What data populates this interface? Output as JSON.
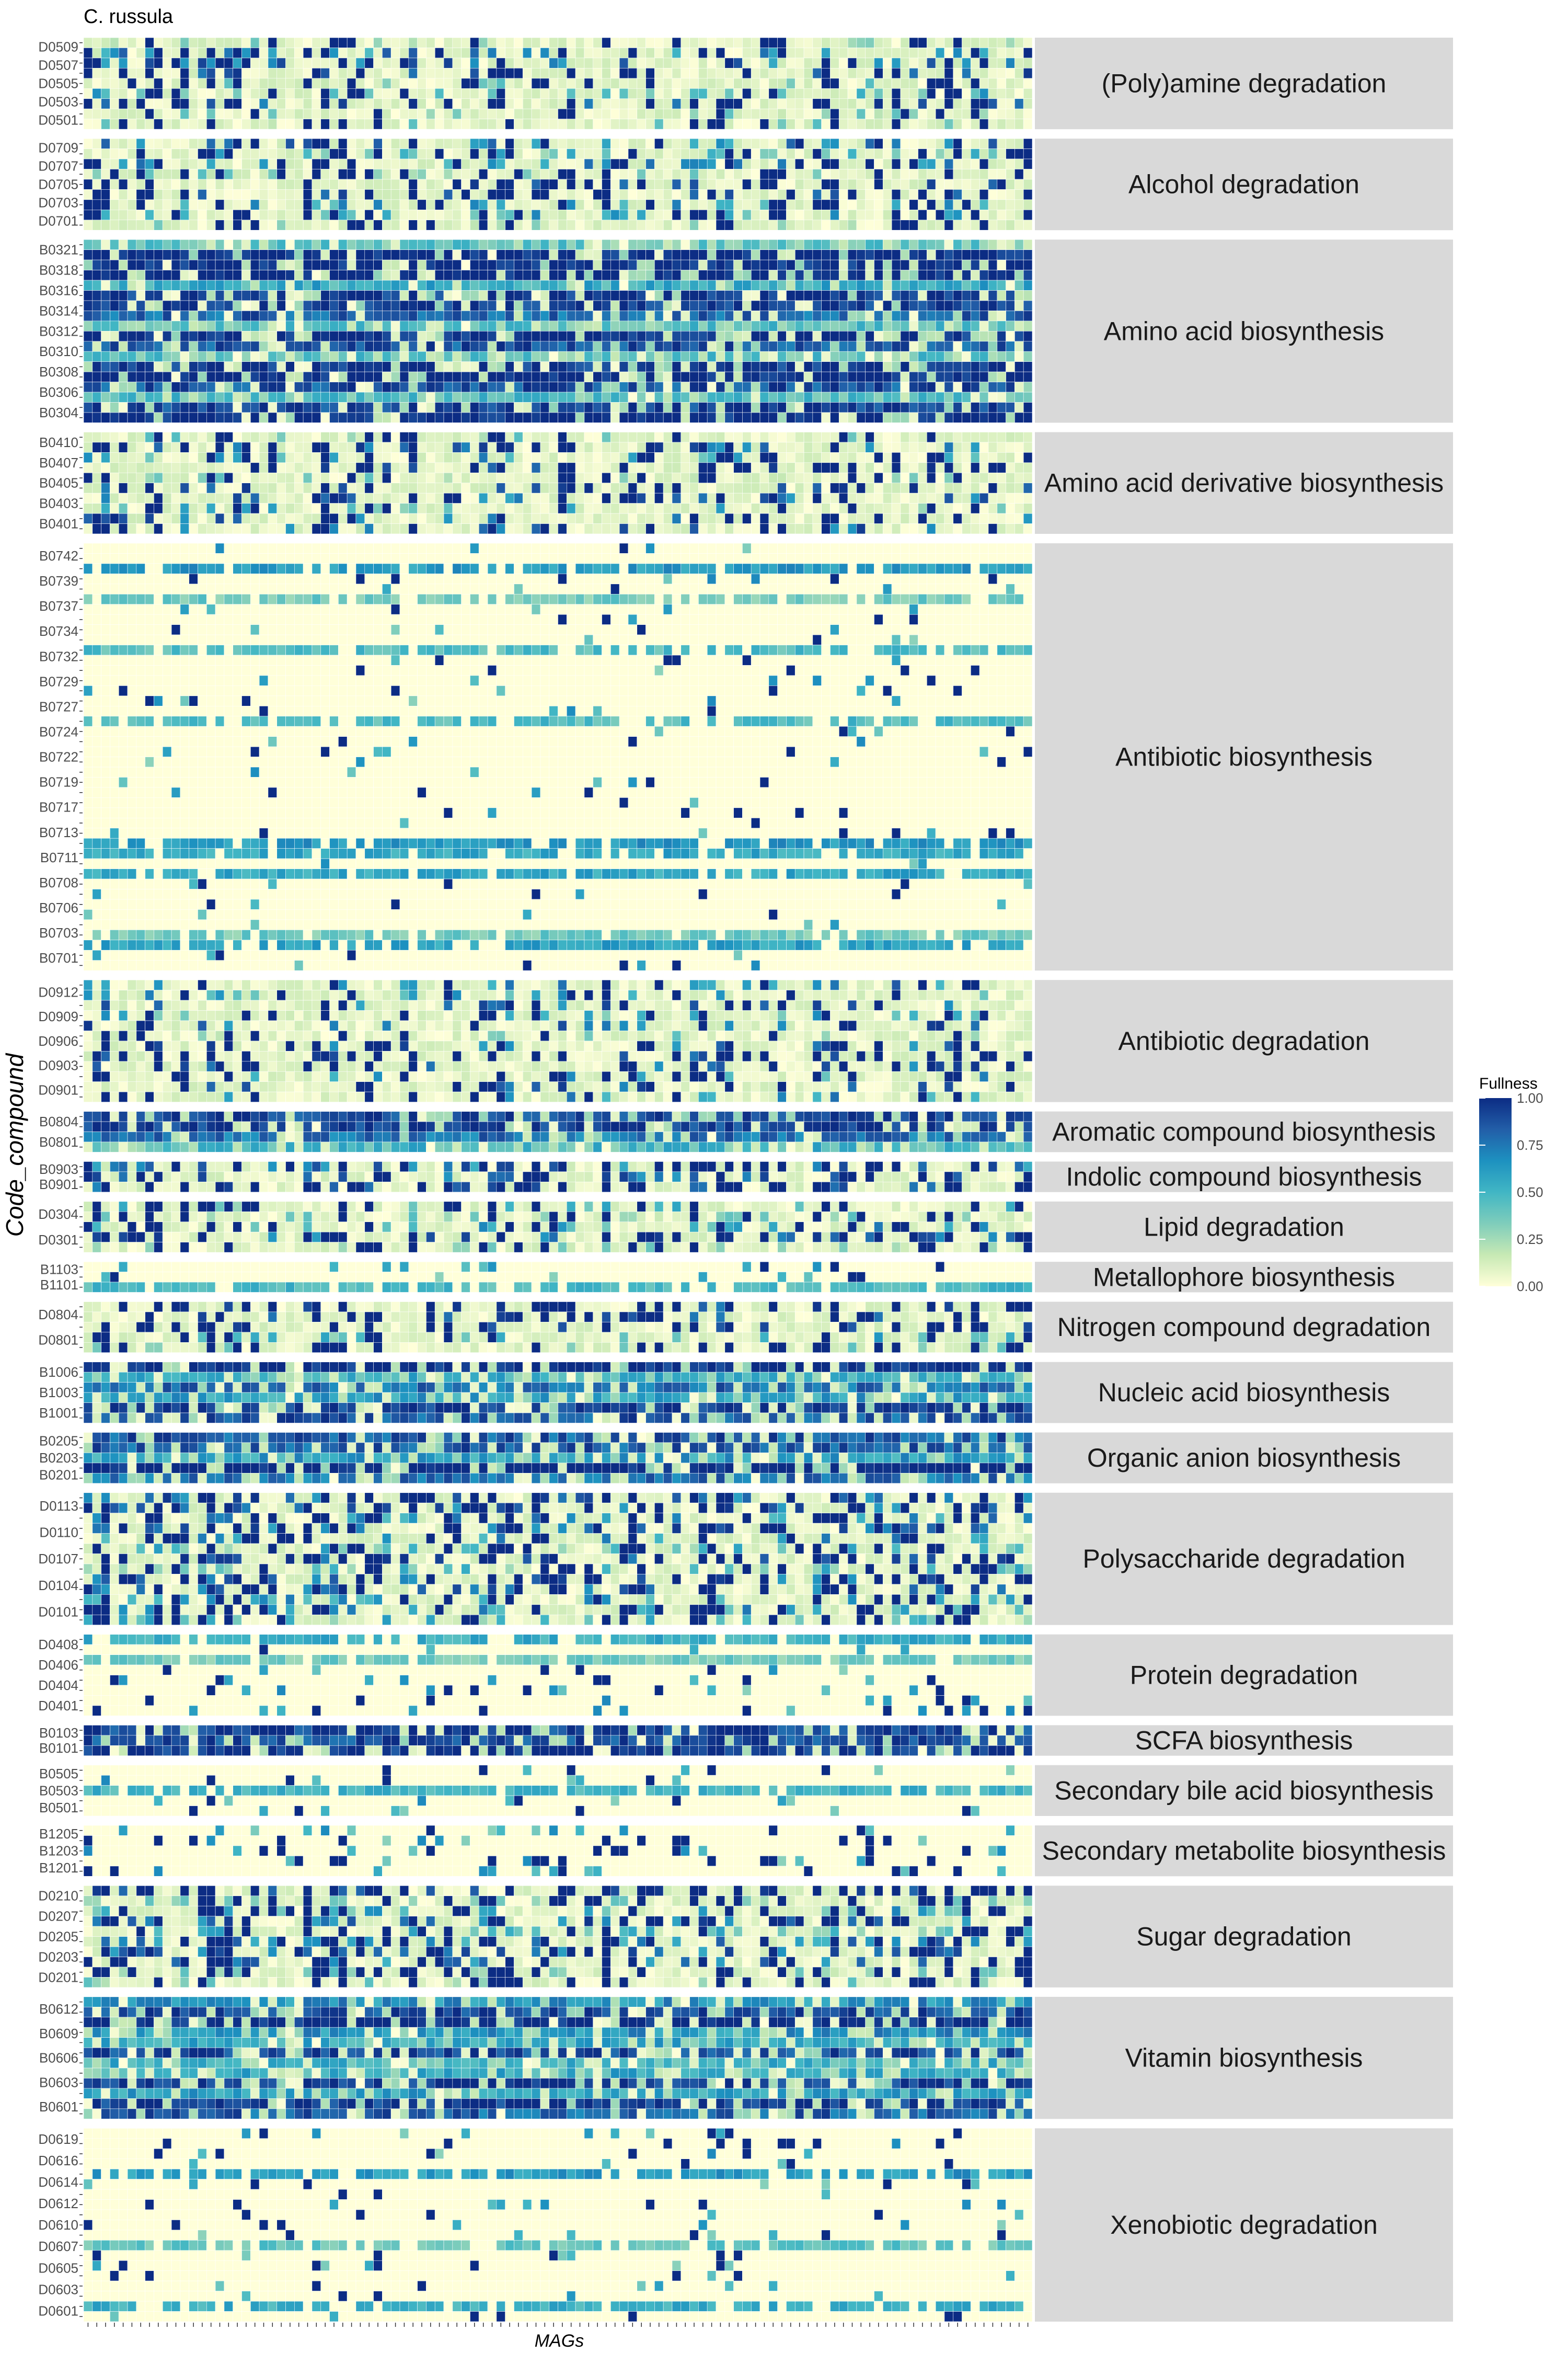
{
  "chart_data": {
    "type": "heatmap",
    "title": "C. russula",
    "xlabel": "MAGs",
    "ylabel": "Code_compound",
    "n_columns": 108,
    "colorscale": {
      "name": "Fullness",
      "range": [
        0,
        1
      ],
      "colors": [
        "#ffffd9",
        "#c7e9b4",
        "#7fcdbb",
        "#41b6c4",
        "#1d91c0",
        "#225ea8",
        "#0c2c84"
      ],
      "ticks": [
        "0.00",
        "0.25",
        "0.50",
        "0.75",
        "1.00"
      ]
    },
    "facets": [
      {
        "name": "(Poly)amine degradation",
        "labels": [
          "D0509",
          "D0507",
          "D0505",
          "D0503",
          "D0501"
        ],
        "rows": 9,
        "profile": "mixed",
        "density": 0.35
      },
      {
        "name": "Alcohol degradation",
        "labels": [
          "D0709",
          "D0707",
          "D0705",
          "D0703",
          "D0701"
        ],
        "rows": 9,
        "profile": "mixed",
        "density": 0.4
      },
      {
        "name": "Amino acid biosynthesis",
        "labels": [
          "B0321",
          "B0318",
          "B0316",
          "B0314",
          "B0312",
          "B0310",
          "B0308",
          "B0306",
          "B0304"
        ],
        "rows": 18,
        "profile": "high",
        "density": 0.7
      },
      {
        "name": "Amino acid derivative biosynthesis",
        "labels": [
          "B0410",
          "B0407",
          "B0405",
          "B0403",
          "B0401"
        ],
        "rows": 10,
        "profile": "mixed",
        "density": 0.3
      },
      {
        "name": "Antibiotic biosynthesis",
        "labels": [
          "B0742",
          "B0739",
          "B0737",
          "B0734",
          "B0732",
          "B0729",
          "B0727",
          "B0724",
          "B0722",
          "B0719",
          "B0717",
          "B0713",
          "B0711",
          "B0708",
          "B0706",
          "B0703",
          "B0701"
        ],
        "rows": 42,
        "profile": "low",
        "density": 0.05
      },
      {
        "name": "Antibiotic degradation",
        "labels": [
          "D0912",
          "D0909",
          "D0906",
          "D0903",
          "D0901"
        ],
        "rows": 12,
        "profile": "mixed",
        "density": 0.3
      },
      {
        "name": "Aromatic compound biosynthesis",
        "labels": [
          "B0804",
          "B0801"
        ],
        "rows": 4,
        "profile": "high",
        "density": 0.75
      },
      {
        "name": "Indolic compound biosynthesis",
        "labels": [
          "B0903",
          "B0901"
        ],
        "rows": 3,
        "profile": "mid",
        "density": 0.4
      },
      {
        "name": "Lipid degradation",
        "labels": [
          "D0304",
          "D0301"
        ],
        "rows": 5,
        "profile": "mixed",
        "density": 0.4
      },
      {
        "name": "Metallophore biosynthesis",
        "labels": [
          "B1103",
          "B1101"
        ],
        "rows": 3,
        "profile": "low",
        "density": 0.1
      },
      {
        "name": "Nitrogen compound degradation",
        "labels": [
          "D0804",
          "D0801"
        ],
        "rows": 5,
        "profile": "mixed",
        "density": 0.3
      },
      {
        "name": "Nucleic acid biosynthesis",
        "labels": [
          "B1006",
          "B1003",
          "B1001"
        ],
        "rows": 6,
        "profile": "high",
        "density": 0.85
      },
      {
        "name": "Organic anion biosynthesis",
        "labels": [
          "B0205",
          "B0203",
          "B0201"
        ],
        "rows": 5,
        "profile": "high",
        "density": 0.7
      },
      {
        "name": "Polysaccharide degradation",
        "labels": [
          "D0113",
          "D0110",
          "D0107",
          "D0104",
          "D0101"
        ],
        "rows": 13,
        "profile": "mid",
        "density": 0.45
      },
      {
        "name": "Protein degradation",
        "labels": [
          "D0408",
          "D0406",
          "D0404",
          "D0401"
        ],
        "rows": 8,
        "profile": "low",
        "density": 0.1
      },
      {
        "name": "SCFA biosynthesis",
        "labels": [
          "B0103",
          "B0101"
        ],
        "rows": 3,
        "profile": "high",
        "density": 0.8
      },
      {
        "name": "Secondary bile acid biosynthesis",
        "labels": [
          "B0505",
          "B0503",
          "B0501"
        ],
        "rows": 5,
        "profile": "low",
        "density": 0.08
      },
      {
        "name": "Secondary metabolite biosynthesis",
        "labels": [
          "B1205",
          "B1203",
          "B1201"
        ],
        "rows": 5,
        "profile": "low",
        "density": 0.15
      },
      {
        "name": "Sugar degradation",
        "labels": [
          "D0210",
          "D0207",
          "D0205",
          "D0203",
          "D0201"
        ],
        "rows": 10,
        "profile": "mixed",
        "density": 0.45
      },
      {
        "name": "Vitamin biosynthesis",
        "labels": [
          "B0612",
          "B0609",
          "B0606",
          "B0603",
          "B0601"
        ],
        "rows": 12,
        "profile": "high",
        "density": 0.6
      },
      {
        "name": "Xenobiotic degradation",
        "labels": [
          "D0619",
          "D0616",
          "D0614",
          "D0612",
          "D0610",
          "D0607",
          "D0605",
          "D0603",
          "D0601"
        ],
        "rows": 19,
        "profile": "low",
        "density": 0.08
      }
    ]
  }
}
